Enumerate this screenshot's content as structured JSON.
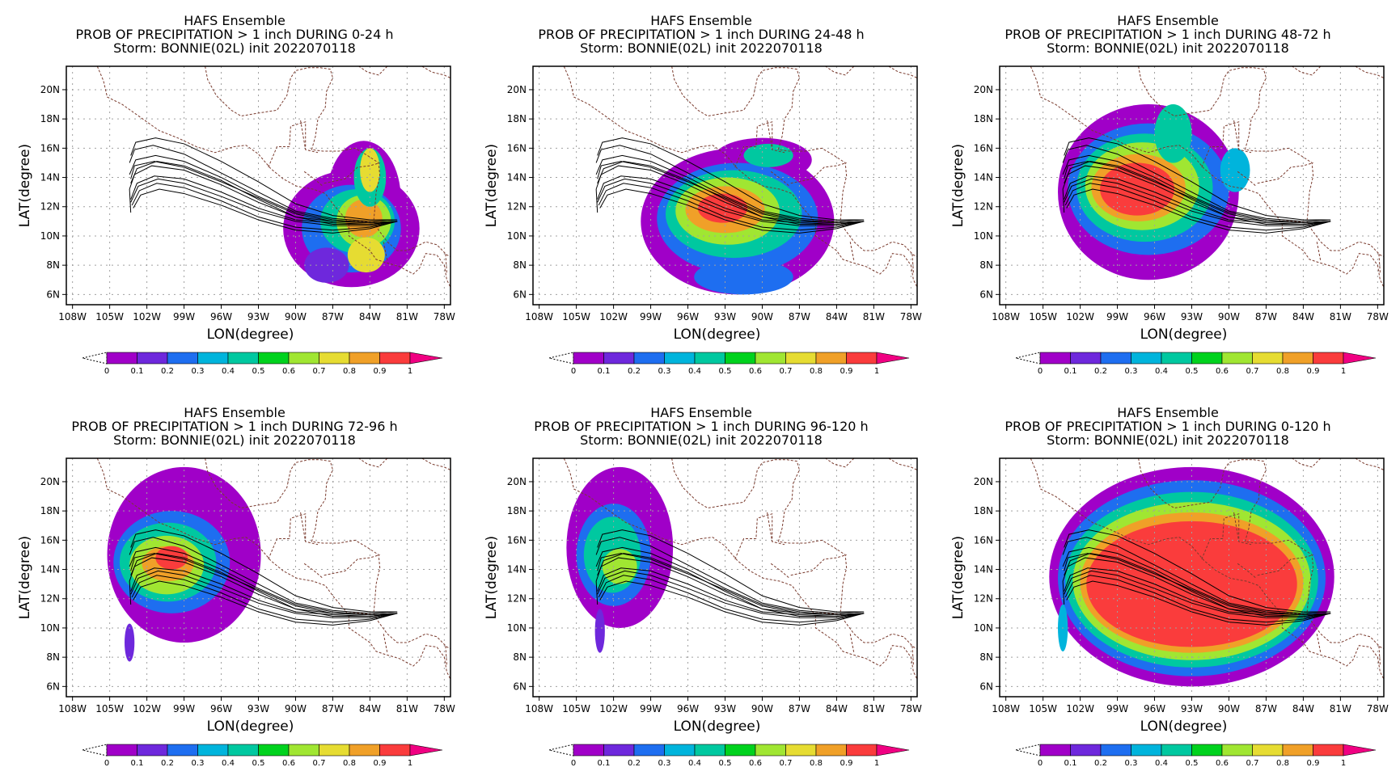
{
  "colors": {
    "scale": [
      "#a000c8",
      "#6e28dc",
      "#1e6ef0",
      "#00b4dc",
      "#00c8a0",
      "#00d21e",
      "#a0e632",
      "#e6dc32",
      "#f0a028",
      "#fa3c3c",
      "#f00082"
    ],
    "coast": "#7a3b2e",
    "track": "#000000",
    "grid": "#a0a0a0"
  },
  "map": {
    "lon_ticks": [
      "108W",
      "105W",
      "102W",
      "99W",
      "96W",
      "93W",
      "90W",
      "87W",
      "84W",
      "81W",
      "78W"
    ],
    "lat_ticks": [
      "6N",
      "8N",
      "10N",
      "12N",
      "14N",
      "16N",
      "18N",
      "20N"
    ],
    "xlabel": "LON(degree)",
    "ylabel": "LAT(degree)",
    "lon_range": [
      -108.5,
      -77.5
    ],
    "lat_range": [
      5.3,
      21.6
    ]
  },
  "colorbar": {
    "labels": [
      "0",
      "0.1",
      "0.2",
      "0.3",
      "0.4",
      "0.5",
      "0.6",
      "0.7",
      "0.8",
      "0.9",
      "1"
    ]
  },
  "panels": [
    {
      "title1": "HAFS Ensemble",
      "title2": "PROB OF PRECIPITATION > 1 inch DURING  0-24 h",
      "title3": "Storm: BONNIE(02L) init 2022070118"
    },
    {
      "title1": "HAFS Ensemble",
      "title2": "PROB OF PRECIPITATION > 1 inch DURING 24-48 h",
      "title3": "Storm: BONNIE(02L) init 2022070118"
    },
    {
      "title1": "HAFS Ensemble",
      "title2": "PROB OF PRECIPITATION > 1 inch DURING 48-72 h",
      "title3": "Storm: BONNIE(02L) init 2022070118"
    },
    {
      "title1": "HAFS Ensemble",
      "title2": "PROB OF PRECIPITATION > 1 inch DURING 72-96 h",
      "title3": "Storm: BONNIE(02L) init 2022070118"
    },
    {
      "title1": "HAFS Ensemble",
      "title2": "PROB OF PRECIPITATION > 1 inch DURING 96-120 h",
      "title3": "Storm: BONNIE(02L) init 2022070118"
    },
    {
      "title1": "HAFS Ensemble",
      "title2": "PROB OF PRECIPITATION > 1 inch DURING 0-120 h",
      "title3": "Storm: BONNIE(02L) init 2022070118"
    }
  ]
}
